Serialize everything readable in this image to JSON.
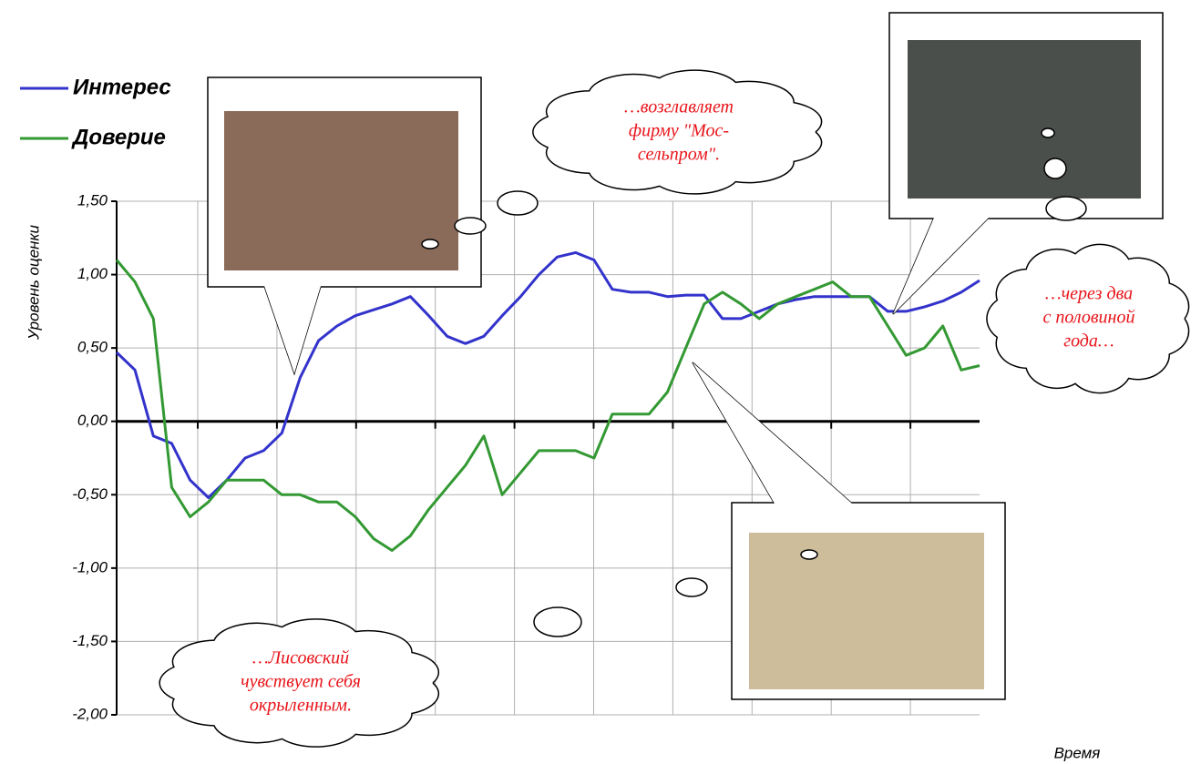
{
  "chart_data": {
    "type": "line",
    "y_label": "Уровень оценки",
    "x_label": "Время",
    "ylim": [
      -2,
      1.5
    ],
    "yticks": [
      {
        "value": -2,
        "label": "-2,00"
      },
      {
        "value": -1.5,
        "label": "-1,50"
      },
      {
        "value": -1,
        "label": "-1,00"
      },
      {
        "value": -0.5,
        "label": "-0,50"
      },
      {
        "value": 0,
        "label": "0,00"
      },
      {
        "value": 0.5,
        "label": "0,50"
      },
      {
        "value": 1,
        "label": "1,00"
      },
      {
        "value": 1.5,
        "label": "1,50"
      }
    ],
    "grid": true,
    "series": [
      {
        "name": "Интерес",
        "color": "#3333cc",
        "values": [
          0.47,
          0.35,
          -0.1,
          -0.15,
          -0.4,
          -0.52,
          -0.4,
          -0.25,
          -0.2,
          -0.08,
          0.3,
          0.55,
          0.65,
          0.72,
          0.76,
          0.8,
          0.85,
          0.72,
          0.58,
          0.53,
          0.58,
          0.72,
          0.85,
          1.0,
          1.12,
          1.15,
          1.1,
          0.9,
          0.88,
          0.88,
          0.85,
          0.86,
          0.86,
          0.7,
          0.7,
          0.75,
          0.8,
          0.83,
          0.85,
          0.85,
          0.85,
          0.85,
          0.75,
          0.75,
          0.78,
          0.82,
          0.88,
          0.96
        ]
      },
      {
        "name": "Доверие",
        "color": "#339933",
        "values": [
          1.1,
          0.95,
          0.7,
          -0.45,
          -0.65,
          -0.55,
          -0.4,
          -0.4,
          -0.4,
          -0.5,
          -0.5,
          -0.55,
          -0.55,
          -0.65,
          -0.8,
          -0.88,
          -0.78,
          -0.6,
          -0.45,
          -0.3,
          -0.1,
          -0.5,
          -0.35,
          -0.2,
          -0.2,
          -0.2,
          -0.25,
          0.05,
          0.05,
          0.05,
          0.2,
          0.5,
          0.8,
          0.88,
          0.8,
          0.7,
          0.8,
          0.85,
          0.9,
          0.95,
          0.85,
          0.85,
          0.65,
          0.45,
          0.5,
          0.65,
          0.35,
          0.38
        ]
      }
    ],
    "annotations": [
      [
        "…возглавляет",
        "фирму \"Мос-",
        "сельпром\"."
      ],
      [
        "…через два",
        "с половиной",
        "года…"
      ],
      [
        "…Лисовский",
        "чувствует себя",
        "окрыленным."
      ]
    ]
  }
}
